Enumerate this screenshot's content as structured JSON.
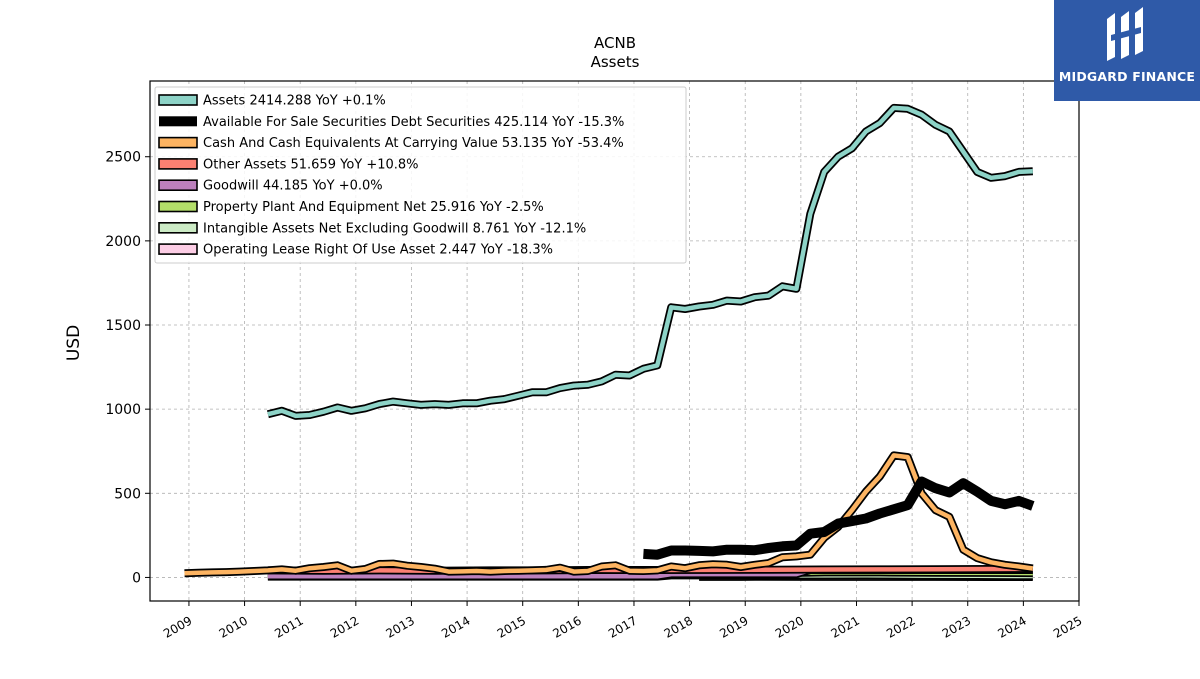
{
  "brand": {
    "name": "MIDGARD FINANCE",
    "logo_icon": "midgard-logo-icon",
    "color": "#2f5aa8"
  },
  "chart_data": {
    "type": "line",
    "title": "ACNB",
    "subtitle": "Assets",
    "ylabel": "USD",
    "xlabel": "",
    "xlim": [
      2008.3,
      2025.0
    ],
    "ylim": [
      -140,
      2950
    ],
    "x_ticks": [
      2009,
      2010,
      2011,
      2012,
      2013,
      2014,
      2015,
      2016,
      2017,
      2018,
      2019,
      2020,
      2021,
      2022,
      2023,
      2024,
      2025
    ],
    "y_ticks": [
      0,
      500,
      1000,
      1500,
      2000,
      2500
    ],
    "grid": true,
    "legend_position": "top-left",
    "series": [
      {
        "name": "Assets",
        "legend": "Assets  2414.288 YoY +0.1%",
        "color": "#8dd3c7",
        "style": "outlined",
        "points": [
          [
            2010.42,
            970
          ],
          [
            2010.67,
            990
          ],
          [
            2010.92,
            960
          ],
          [
            2011.17,
            965
          ],
          [
            2011.42,
            985
          ],
          [
            2011.67,
            1010
          ],
          [
            2011.92,
            990
          ],
          [
            2012.17,
            1005
          ],
          [
            2012.42,
            1030
          ],
          [
            2012.67,
            1045
          ],
          [
            2012.92,
            1035
          ],
          [
            2013.17,
            1025
          ],
          [
            2013.42,
            1030
          ],
          [
            2013.67,
            1025
          ],
          [
            2013.92,
            1035
          ],
          [
            2014.17,
            1035
          ],
          [
            2014.42,
            1050
          ],
          [
            2014.67,
            1060
          ],
          [
            2014.92,
            1080
          ],
          [
            2015.17,
            1100
          ],
          [
            2015.42,
            1100
          ],
          [
            2015.67,
            1125
          ],
          [
            2015.92,
            1140
          ],
          [
            2016.17,
            1145
          ],
          [
            2016.42,
            1165
          ],
          [
            2016.67,
            1205
          ],
          [
            2016.92,
            1200
          ],
          [
            2017.17,
            1240
          ],
          [
            2017.42,
            1260
          ],
          [
            2017.67,
            1605
          ],
          [
            2017.92,
            1595
          ],
          [
            2018.17,
            1610
          ],
          [
            2018.42,
            1620
          ],
          [
            2018.67,
            1645
          ],
          [
            2018.92,
            1640
          ],
          [
            2019.17,
            1665
          ],
          [
            2019.42,
            1675
          ],
          [
            2019.67,
            1730
          ],
          [
            2019.92,
            1715
          ],
          [
            2020.17,
            2160
          ],
          [
            2020.42,
            2410
          ],
          [
            2020.67,
            2500
          ],
          [
            2020.92,
            2550
          ],
          [
            2021.17,
            2650
          ],
          [
            2021.42,
            2700
          ],
          [
            2021.67,
            2790
          ],
          [
            2021.92,
            2785
          ],
          [
            2022.17,
            2750
          ],
          [
            2022.42,
            2690
          ],
          [
            2022.67,
            2650
          ],
          [
            2022.92,
            2530
          ],
          [
            2023.17,
            2410
          ],
          [
            2023.42,
            2375
          ],
          [
            2023.67,
            2385
          ],
          [
            2023.92,
            2410
          ],
          [
            2024.17,
            2414
          ]
        ]
      },
      {
        "name": "Available For Sale Securities Debt Securities",
        "legend": "Available For Sale Securities Debt Securities  425.114 YoY -15.3%",
        "color": "#000000",
        "style": "thick",
        "points": [
          [
            2017.17,
            140
          ],
          [
            2017.42,
            135
          ],
          [
            2017.67,
            160
          ],
          [
            2017.92,
            160
          ],
          [
            2018.17,
            158
          ],
          [
            2018.42,
            155
          ],
          [
            2018.67,
            165
          ],
          [
            2018.92,
            165
          ],
          [
            2019.17,
            162
          ],
          [
            2019.42,
            175
          ],
          [
            2019.67,
            185
          ],
          [
            2019.92,
            190
          ],
          [
            2020.17,
            260
          ],
          [
            2020.42,
            270
          ],
          [
            2020.67,
            320
          ],
          [
            2020.92,
            335
          ],
          [
            2021.17,
            350
          ],
          [
            2021.42,
            380
          ],
          [
            2021.67,
            405
          ],
          [
            2021.92,
            430
          ],
          [
            2022.17,
            570
          ],
          [
            2022.42,
            530
          ],
          [
            2022.67,
            505
          ],
          [
            2022.92,
            560
          ],
          [
            2023.17,
            510
          ],
          [
            2023.42,
            455
          ],
          [
            2023.67,
            435
          ],
          [
            2023.92,
            455
          ],
          [
            2024.17,
            425
          ]
        ]
      },
      {
        "name": "Cash And Cash Equivalents At Carrying Value",
        "legend": "Cash And Cash Equivalents At Carrying Value  53.135 YoY -53.4%",
        "color": "#fdb462",
        "style": "outlined",
        "points": [
          [
            2008.92,
            25
          ],
          [
            2009.17,
            28
          ],
          [
            2009.42,
            30
          ],
          [
            2009.67,
            32
          ],
          [
            2009.92,
            35
          ],
          [
            2010.17,
            38
          ],
          [
            2010.42,
            42
          ],
          [
            2010.67,
            48
          ],
          [
            2010.92,
            40
          ],
          [
            2011.17,
            55
          ],
          [
            2011.42,
            62
          ],
          [
            2011.67,
            72
          ],
          [
            2011.92,
            40
          ],
          [
            2012.17,
            50
          ],
          [
            2012.42,
            80
          ],
          [
            2012.67,
            82
          ],
          [
            2012.92,
            70
          ],
          [
            2013.17,
            62
          ],
          [
            2013.42,
            52
          ],
          [
            2013.67,
            35
          ],
          [
            2013.92,
            36
          ],
          [
            2014.17,
            38
          ],
          [
            2014.42,
            35
          ],
          [
            2014.67,
            38
          ],
          [
            2014.92,
            40
          ],
          [
            2015.17,
            42
          ],
          [
            2015.42,
            45
          ],
          [
            2015.67,
            58
          ],
          [
            2015.92,
            35
          ],
          [
            2016.17,
            38
          ],
          [
            2016.42,
            65
          ],
          [
            2016.67,
            72
          ],
          [
            2016.92,
            40
          ],
          [
            2017.17,
            38
          ],
          [
            2017.42,
            42
          ],
          [
            2017.67,
            65
          ],
          [
            2017.92,
            55
          ],
          [
            2018.17,
            72
          ],
          [
            2018.42,
            78
          ],
          [
            2018.67,
            75
          ],
          [
            2018.92,
            62
          ],
          [
            2019.17,
            75
          ],
          [
            2019.42,
            85
          ],
          [
            2019.67,
            120
          ],
          [
            2019.92,
            125
          ],
          [
            2020.17,
            135
          ],
          [
            2020.42,
            235
          ],
          [
            2020.67,
            300
          ],
          [
            2020.92,
            400
          ],
          [
            2021.17,
            510
          ],
          [
            2021.42,
            600
          ],
          [
            2021.67,
            725
          ],
          [
            2021.92,
            715
          ],
          [
            2022.17,
            500
          ],
          [
            2022.42,
            400
          ],
          [
            2022.67,
            360
          ],
          [
            2022.92,
            165
          ],
          [
            2023.17,
            115
          ],
          [
            2023.42,
            90
          ],
          [
            2023.67,
            75
          ],
          [
            2023.92,
            65
          ],
          [
            2024.17,
            53
          ]
        ]
      },
      {
        "name": "Other Assets",
        "legend": "Other Assets  51.659 YoY +10.8%",
        "color": "#fb8072",
        "style": "outlined",
        "points": [
          [
            2010.42,
            42
          ],
          [
            2011.42,
            40
          ],
          [
            2012.42,
            42
          ],
          [
            2013.42,
            40
          ],
          [
            2014.42,
            42
          ],
          [
            2015.42,
            42
          ],
          [
            2016.42,
            45
          ],
          [
            2017.42,
            44
          ],
          [
            2018.42,
            45
          ],
          [
            2019.42,
            46
          ],
          [
            2020.42,
            47
          ],
          [
            2021.42,
            48
          ],
          [
            2022.42,
            49
          ],
          [
            2023.42,
            50
          ],
          [
            2024.17,
            52
          ]
        ]
      },
      {
        "name": "Goodwill",
        "legend": "Goodwill  44.185 YoY +0.0%",
        "color": "#bc80bd",
        "style": "outlined",
        "points": [
          [
            2010.42,
            7
          ],
          [
            2017.42,
            7
          ],
          [
            2017.67,
            20
          ],
          [
            2019.92,
            20
          ],
          [
            2020.17,
            44
          ],
          [
            2024.17,
            44.2
          ]
        ]
      },
      {
        "name": "Property Plant And Equipment Net",
        "legend": "Property Plant And Equipment Net  25.916 YoY -2.5%",
        "color": "#b3de69",
        "style": "outlined",
        "points": [
          [
            2010.42,
            20
          ],
          [
            2017.42,
            20
          ],
          [
            2018.42,
            22
          ],
          [
            2019.42,
            24
          ],
          [
            2020.42,
            30
          ],
          [
            2021.42,
            30
          ],
          [
            2022.42,
            28
          ],
          [
            2023.42,
            27
          ],
          [
            2024.17,
            25.9
          ]
        ]
      },
      {
        "name": "Intangible Assets Net Excluding Goodwill",
        "legend": "Intangible Assets Net Excluding Goodwill  8.761 YoY -12.1%",
        "color": "#ccebc5",
        "style": "outlined",
        "points": [
          [
            2010.42,
            5
          ],
          [
            2017.42,
            5
          ],
          [
            2017.67,
            12
          ],
          [
            2020.17,
            12
          ],
          [
            2021.17,
            13
          ],
          [
            2022.17,
            11
          ],
          [
            2023.17,
            10
          ],
          [
            2024.17,
            8.8
          ]
        ]
      },
      {
        "name": "Operating Lease Right Of Use Asset",
        "legend": "Operating Lease Right Of Use Asset  2.447 YoY -18.3%",
        "color": "#fccde5",
        "style": "outlined",
        "points": [
          [
            2018.17,
            3
          ],
          [
            2018.92,
            3
          ],
          [
            2019.17,
            4
          ],
          [
            2020.42,
            3.5
          ],
          [
            2021.42,
            3
          ],
          [
            2022.42,
            3
          ],
          [
            2023.42,
            2.8
          ],
          [
            2024.17,
            2.4
          ]
        ]
      }
    ]
  }
}
